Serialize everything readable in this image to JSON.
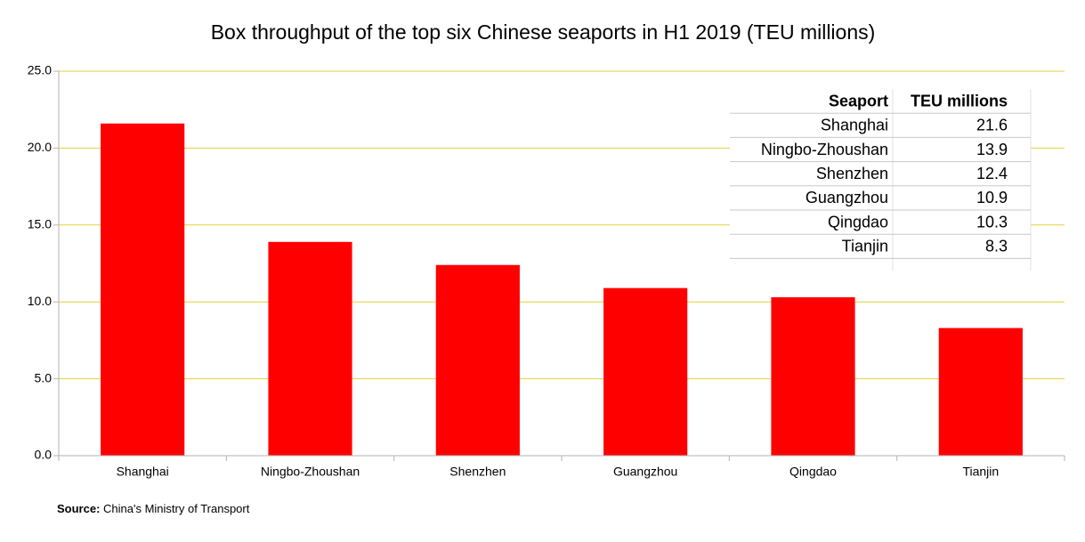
{
  "chart_data": {
    "type": "bar",
    "title": "Box throughput of the top six Chinese seaports in H1 2019 (TEU millions)",
    "categories": [
      "Shanghai",
      "Ningbo-Zhoushan",
      "Shenzhen",
      "Guangzhou",
      "Qingdao",
      "Tianjin"
    ],
    "values": [
      21.6,
      13.9,
      12.4,
      10.9,
      10.3,
      8.3
    ],
    "color": "#ff0000",
    "ylim": [
      0,
      25
    ],
    "yticks": [
      {
        "value": 0,
        "label": "0.0"
      },
      {
        "value": 5,
        "label": "5.0"
      },
      {
        "value": 10,
        "label": "10.0"
      },
      {
        "value": 15,
        "label": "15.0"
      },
      {
        "value": 20,
        "label": "20.0"
      },
      {
        "value": 25,
        "label": "25.0"
      }
    ],
    "grid": true,
    "table_columns": [
      "Seaport",
      "TEU millions"
    ],
    "source_label": "Source:",
    "source": "China's Ministry of Transport"
  }
}
